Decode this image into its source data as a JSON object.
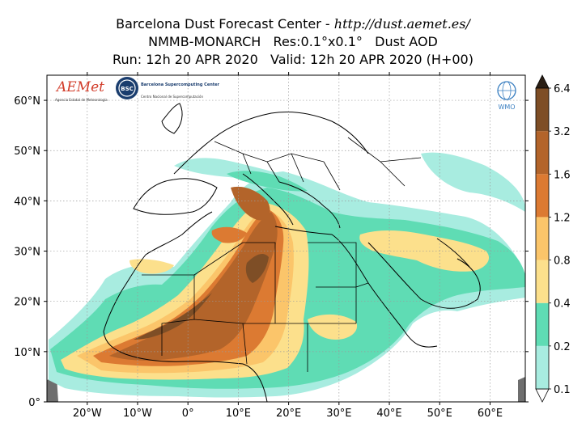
{
  "title": {
    "line1_prefix": "Barcelona Dust Forecast Center - ",
    "line1_url": "http://dust.aemet.es/",
    "line2": "NMMB-MONARCH   Res:0.1°x0.1°   Dust AOD",
    "line3": "Run: 12h 20 APR 2020   Valid: 12h 20 APR 2020 (H+00)"
  },
  "map": {
    "lon_range": [
      -28,
      67
    ],
    "lat_range": [
      0,
      65
    ],
    "x_ticks": [
      {
        "value": -20,
        "label": "20°W"
      },
      {
        "value": -10,
        "label": "10°W"
      },
      {
        "value": 0,
        "label": "0°"
      },
      {
        "value": 10,
        "label": "10°E"
      },
      {
        "value": 20,
        "label": "20°E"
      },
      {
        "value": 30,
        "label": "30°E"
      },
      {
        "value": 40,
        "label": "40°E"
      },
      {
        "value": 50,
        "label": "50°E"
      },
      {
        "value": 60,
        "label": "60°E"
      }
    ],
    "y_ticks": [
      {
        "value": 0,
        "label": "0°"
      },
      {
        "value": 10,
        "label": "10°N"
      },
      {
        "value": 20,
        "label": "20°N"
      },
      {
        "value": 30,
        "label": "30°N"
      },
      {
        "value": 40,
        "label": "40°N"
      },
      {
        "value": 50,
        "label": "50°N"
      },
      {
        "value": 60,
        "label": "60°N"
      }
    ],
    "grid": true,
    "field": "Dust AOD"
  },
  "colorbar": {
    "levels": [
      "0.1",
      "0.2",
      "0.4",
      "0.8",
      "1.2",
      "1.6",
      "3.2",
      "6.4"
    ],
    "colors": [
      "#a8ece0",
      "#5fdcb4",
      "#fce08c",
      "#fbc56a",
      "#dc7a32",
      "#b3642a",
      "#7e4e26",
      "#4a3320",
      "#2a1e14"
    ],
    "extend": "both"
  },
  "logos": {
    "aemet": "AEMet",
    "aemet_sub": "Agencia Estatal de Meteorología",
    "bsc": "BSC",
    "bsc_text": "Barcelona Supercomputing Center",
    "bsc_sub": "Centro Nacional de Supercomputación",
    "wmo": "WMO"
  },
  "icons": {
    "wmo": "wmo-globe-emblem-icon"
  }
}
